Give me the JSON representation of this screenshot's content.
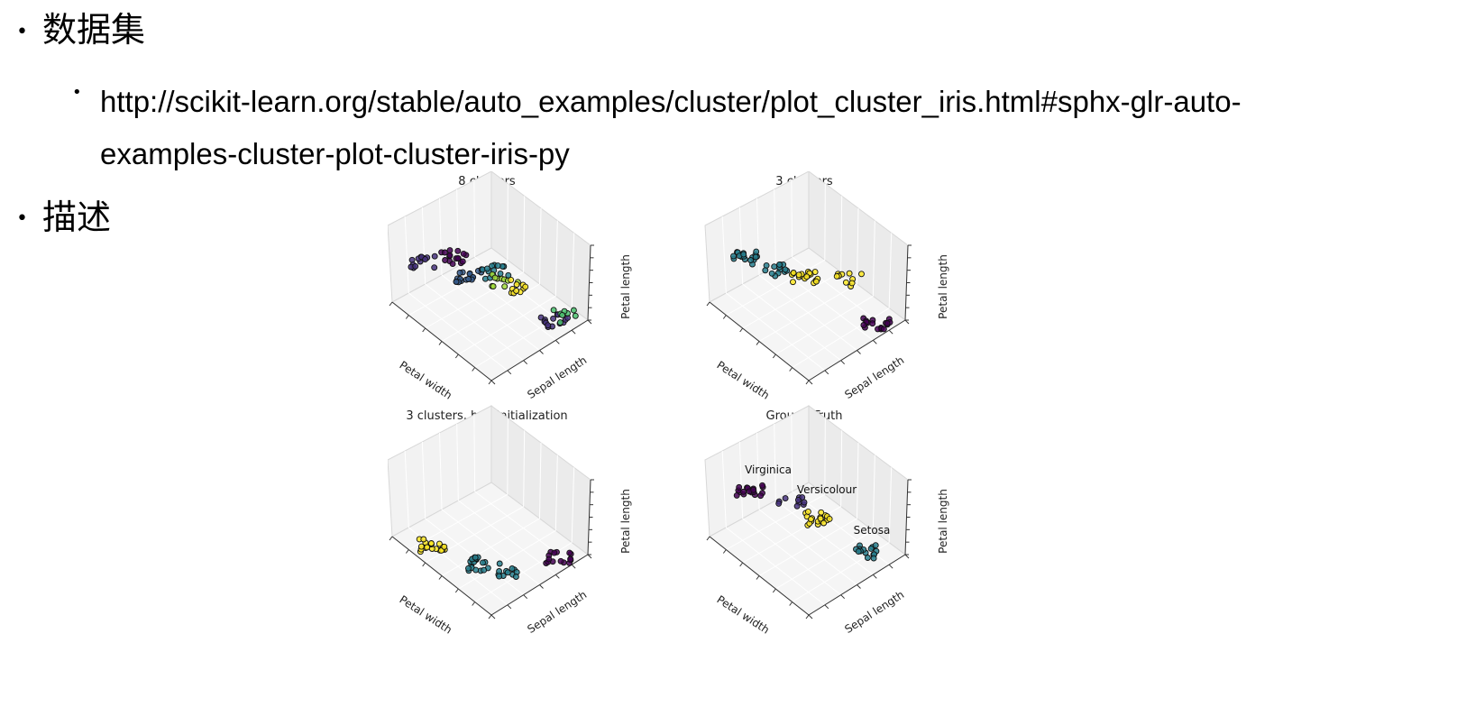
{
  "bullets": {
    "dataset_heading": "数据集",
    "dataset_link_line1": "http://scikit-learn.org/stable/auto_examples/cluster/plot_cluster_iris.html#sphx-glr-auto-",
    "dataset_link_line2": "examples-cluster-plot-cluster-iris-py",
    "description_heading": "描述"
  },
  "colors": {
    "purple": "#440154",
    "blue_purple": "#46337e",
    "indigo": "#365c8d",
    "teal": "#277f8e",
    "green_teal": "#1fa187",
    "green": "#4ac16d",
    "lime": "#a0da39",
    "yellow": "#fde725"
  },
  "chart_data": [
    {
      "type": "scatter",
      "title": "8 clusters",
      "axis_labels": {
        "x": "Petal width",
        "y": "Sepal length",
        "z": "Petal length"
      },
      "series": []
    },
    {
      "type": "scatter",
      "title": "3 clusters",
      "axis_labels": {
        "x": "Petal width",
        "y": "Sepal length",
        "z": "Petal length"
      },
      "series": []
    },
    {
      "type": "scatter",
      "title": "3 clusters, bad initialization",
      "axis_labels": {
        "x": "Petal width",
        "y": "Sepal length",
        "z": "Petal length"
      },
      "series": []
    },
    {
      "type": "scatter",
      "title": "Ground Truth",
      "axis_labels": {
        "x": "Petal width",
        "y": "Sepal length",
        "z": "Petal length"
      },
      "annotations": [
        "Virginica",
        "Versicolour",
        "Setosa"
      ],
      "series": []
    }
  ]
}
